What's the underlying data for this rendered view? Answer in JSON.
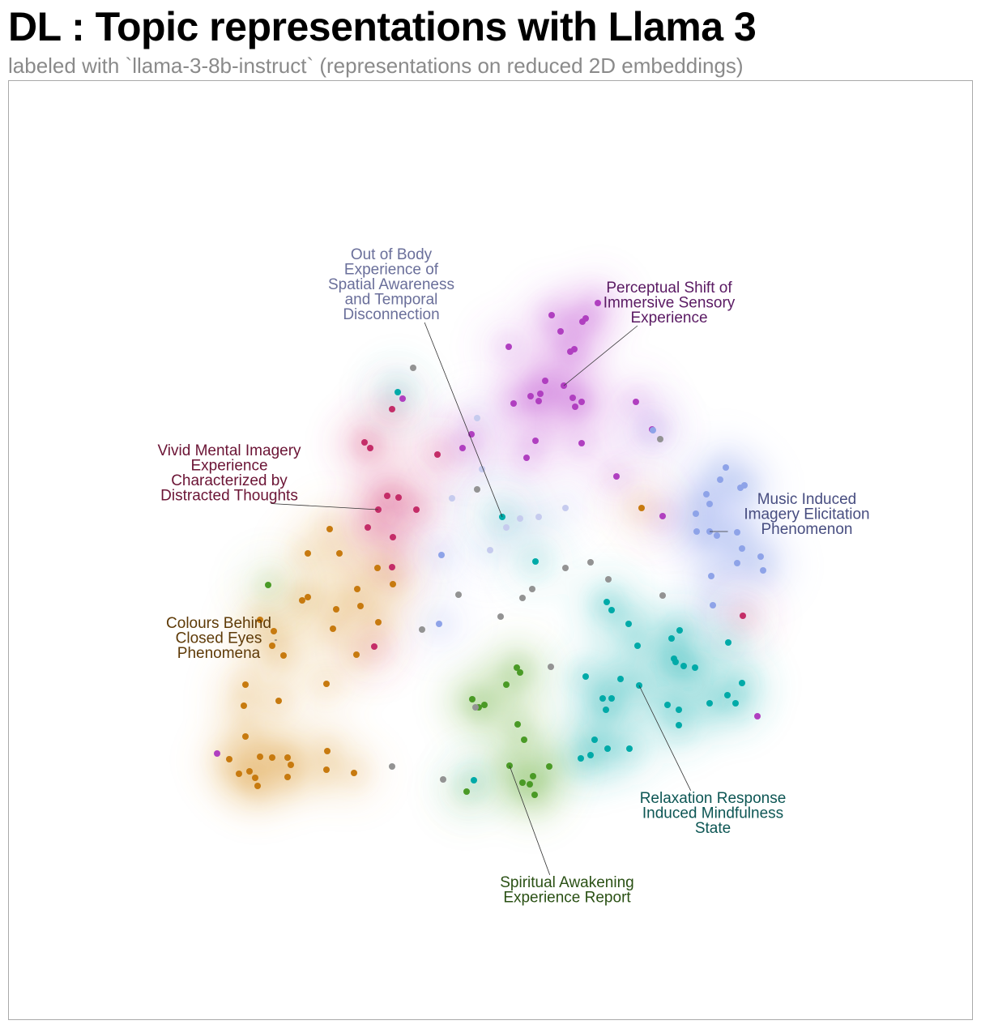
{
  "header": {
    "title": "DL : Topic representations with Llama 3",
    "subtitle": "labeled with `llama-3-8b-instruct` (representations on reduced 2D embeddings)"
  },
  "chart_data": {
    "type": "scatter",
    "title": "DL : Topic representations with Llama 3",
    "subtitle": "labeled with `llama-3-8b-instruct` (representations on reduced 2D embeddings)",
    "xlabel": "",
    "ylabel": "",
    "axes_visible": false,
    "grid": false,
    "density_contours": true,
    "clusters": [
      {
        "label": [
          "Perceptual Shift of",
          "Immersive Sensory",
          "Experience"
        ],
        "color": "#b03fc0",
        "fill": "#c45ed4",
        "text_color": "#5a1a63",
        "anchor": [
          696,
          476
        ],
        "label_pos": [
          826,
          361
        ],
        "points": [
          [
            681,
            389
          ],
          [
            738,
            374
          ],
          [
            719,
            397
          ],
          [
            723,
            393
          ],
          [
            692,
            409
          ],
          [
            628,
            428
          ],
          [
            709,
            431
          ],
          [
            704,
            434
          ],
          [
            673,
            470
          ],
          [
            667,
            486
          ],
          [
            696,
            476
          ],
          [
            655,
            489
          ],
          [
            665,
            495
          ],
          [
            707,
            491
          ],
          [
            718,
            496
          ],
          [
            710,
            502
          ],
          [
            634,
            498
          ],
          [
            661,
            544
          ],
          [
            718,
            547
          ],
          [
            650,
            565
          ],
          [
            571,
            553
          ],
          [
            582,
            536
          ],
          [
            785,
            496
          ],
          [
            805,
            530
          ],
          [
            761,
            588
          ],
          [
            818,
            637
          ]
        ]
      },
      {
        "label": [
          "Out of Body",
          "Experience of",
          "Spatial Awareness",
          "and Temporal",
          "Disconnection"
        ],
        "color": "#c6cbee",
        "fill": "#d2d6f2",
        "text_color": "#6a6f9a",
        "anchor": [
          620,
          638
        ],
        "label_pos": [
          483,
          320
        ],
        "points": [
          [
            589,
            516
          ],
          [
            595,
            579
          ],
          [
            558,
            615
          ],
          [
            625,
            651
          ],
          [
            642,
            640
          ],
          [
            665,
            638
          ],
          [
            698,
            627
          ],
          [
            605,
            679
          ]
        ]
      },
      {
        "label": [
          "Vivid Mental Imagery",
          "Experience",
          "Characterized by",
          "Distracted Thoughts"
        ],
        "color": "#c42d68",
        "fill": "#d9467d",
        "text_color": "#6b1435",
        "anchor": [
          467,
          629
        ],
        "label_pos": [
          283,
          562
        ],
        "points": [
          [
            484,
            505
          ],
          [
            450,
            546
          ],
          [
            457,
            553
          ],
          [
            540,
            561
          ],
          [
            478,
            612
          ],
          [
            492,
            614
          ],
          [
            514,
            629
          ],
          [
            467,
            629
          ],
          [
            454,
            651
          ],
          [
            485,
            663
          ],
          [
            484,
            700
          ],
          [
            462,
            798
          ],
          [
            917,
            760
          ]
        ]
      },
      {
        "label": [
          "Music Induced",
          "Imagery Elicitation",
          "Phenomenon"
        ],
        "color": "#8ea3e8",
        "fill": "#9fb1ef",
        "text_color": "#474d80",
        "anchor": [
          876,
          656
        ],
        "label_pos": [
          996,
          622
        ],
        "points": [
          [
            896,
            577
          ],
          [
            889,
            592
          ],
          [
            919,
            599
          ],
          [
            914,
            602
          ],
          [
            872,
            610
          ],
          [
            876,
            622
          ],
          [
            859,
            634
          ],
          [
            860,
            656
          ],
          [
            876,
            656
          ],
          [
            885,
            661
          ],
          [
            910,
            657
          ],
          [
            916,
            677
          ],
          [
            939,
            687
          ],
          [
            910,
            695
          ],
          [
            942,
            704
          ],
          [
            878,
            711
          ],
          [
            880,
            747
          ],
          [
            545,
            685
          ],
          [
            542,
            770
          ],
          [
            806,
            531
          ]
        ]
      },
      {
        "label": [
          "Colours Behind",
          "Closed Eyes",
          "Phenomena"
        ],
        "color": "#c77a0f",
        "fill": "#e2a64f",
        "text_color": "#5e3a07",
        "anchor": [
          339,
          790
        ],
        "label_pos": [
          270,
          775
        ],
        "points": [
          [
            407,
            653
          ],
          [
            380,
            683
          ],
          [
            419,
            683
          ],
          [
            466,
            701
          ],
          [
            485,
            721
          ],
          [
            441,
            727
          ],
          [
            380,
            737
          ],
          [
            373,
            741
          ],
          [
            415,
            752
          ],
          [
            445,
            748
          ],
          [
            467,
            768
          ],
          [
            411,
            776
          ],
          [
            338,
            779
          ],
          [
            321,
            765
          ],
          [
            336,
            797
          ],
          [
            350,
            809
          ],
          [
            440,
            808
          ],
          [
            303,
            845
          ],
          [
            403,
            844
          ],
          [
            344,
            865
          ],
          [
            301,
            871
          ],
          [
            303,
            909
          ],
          [
            404,
            927
          ],
          [
            321,
            934
          ],
          [
            336,
            935
          ],
          [
            355,
            935
          ],
          [
            359,
            944
          ],
          [
            283,
            937
          ],
          [
            308,
            952
          ],
          [
            295,
            955
          ],
          [
            315,
            960
          ],
          [
            318,
            970
          ],
          [
            355,
            959
          ],
          [
            403,
            950
          ],
          [
            437,
            954
          ],
          [
            792,
            627
          ]
        ]
      },
      {
        "label": [
          "Relaxation Response",
          "Induced Mindfulness",
          "State"
        ],
        "color": "#00aaa8",
        "fill": "#33bfbd",
        "text_color": "#0d5654",
        "anchor": [
          789,
          846
        ],
        "label_pos": [
          880,
          991
        ],
        "points": [
          [
            491,
            484
          ],
          [
            620,
            638
          ],
          [
            661,
            693
          ],
          [
            749,
            743
          ],
          [
            755,
            753
          ],
          [
            776,
            770
          ],
          [
            839,
            778
          ],
          [
            829,
            788
          ],
          [
            787,
            797
          ],
          [
            899,
            793
          ],
          [
            832,
            813
          ],
          [
            834,
            817
          ],
          [
            844,
            822
          ],
          [
            858,
            824
          ],
          [
            723,
            835
          ],
          [
            766,
            838
          ],
          [
            789,
            846
          ],
          [
            916,
            843
          ],
          [
            744,
            862
          ],
          [
            755,
            862
          ],
          [
            748,
            876
          ],
          [
            824,
            870
          ],
          [
            838,
            876
          ],
          [
            876,
            868
          ],
          [
            898,
            858
          ],
          [
            908,
            868
          ],
          [
            838,
            895
          ],
          [
            734,
            913
          ],
          [
            750,
            924
          ],
          [
            777,
            924
          ],
          [
            729,
            932
          ],
          [
            717,
            936
          ],
          [
            585,
            963
          ]
        ]
      },
      {
        "label": [
          "Spiritual Awakening",
          "Experience Report"
        ],
        "color": "#4a9a26",
        "fill": "#7fbf5b",
        "text_color": "#2a5014",
        "anchor": [
          629,
          945
        ],
        "label_pos": [
          700,
          1095
        ],
        "points": [
          [
            331,
            722
          ],
          [
            638,
            824
          ],
          [
            642,
            830
          ],
          [
            625,
            845
          ],
          [
            583,
            863
          ],
          [
            598,
            870
          ],
          [
            591,
            873
          ],
          [
            639,
            894
          ],
          [
            647,
            913
          ],
          [
            629,
            945
          ],
          [
            678,
            946
          ],
          [
            658,
            958
          ],
          [
            645,
            966
          ],
          [
            654,
            968
          ],
          [
            660,
            981
          ],
          [
            576,
            977
          ]
        ]
      },
      {
        "label": [],
        "color": "#939393",
        "fill": "#939393",
        "text_color": "#939393",
        "anchor": null,
        "label_pos": null,
        "points": [
          [
            510,
            454
          ],
          [
            815,
            542
          ],
          [
            589,
            604
          ],
          [
            657,
            727
          ],
          [
            645,
            738
          ],
          [
            566,
            734
          ],
          [
            698,
            701
          ],
          [
            729,
            694
          ],
          [
            751,
            715
          ],
          [
            818,
            735
          ],
          [
            618,
            761
          ],
          [
            521,
            777
          ],
          [
            680,
            823
          ],
          [
            587,
            873
          ],
          [
            484,
            946
          ],
          [
            547,
            962
          ]
        ]
      },
      {
        "label": [],
        "color": "#b03fc0",
        "fill": "#b03fc0",
        "text_color": "#5a1a63",
        "anchor": null,
        "label_pos": null,
        "points": [
          [
            497,
            492
          ],
          [
            268,
            930
          ],
          [
            935,
            884
          ]
        ]
      }
    ]
  }
}
